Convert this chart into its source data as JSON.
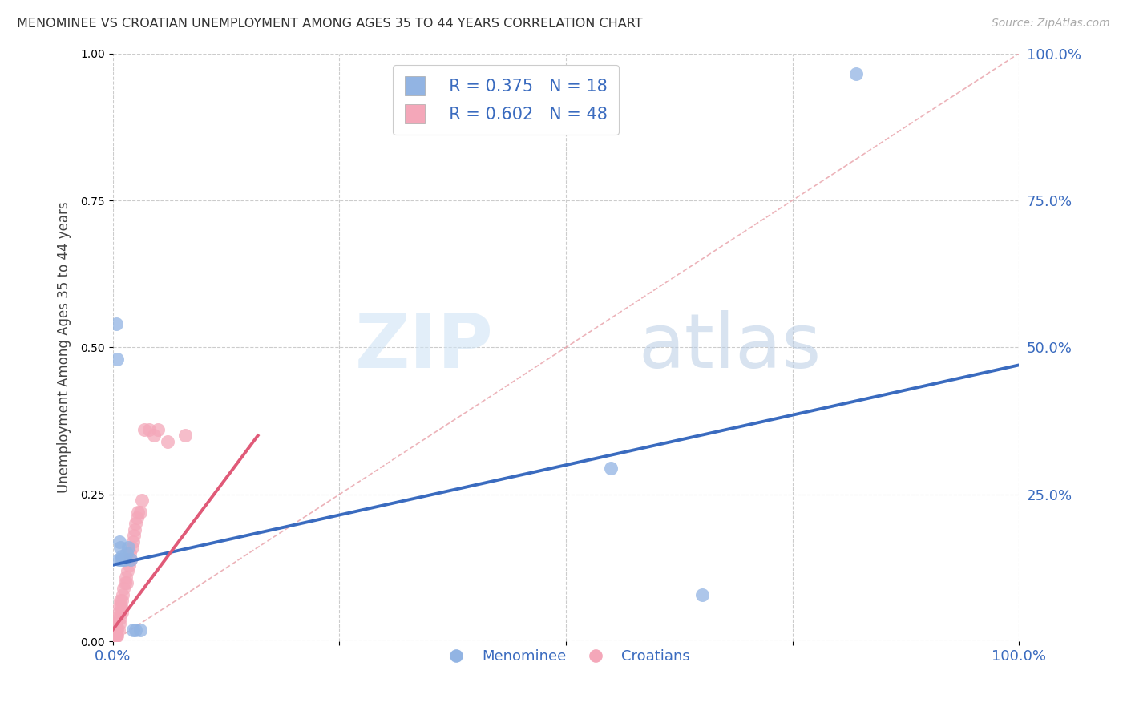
{
  "title": "MENOMINEE VS CROATIAN UNEMPLOYMENT AMONG AGES 35 TO 44 YEARS CORRELATION CHART",
  "source": "Source: ZipAtlas.com",
  "ylabel": "Unemployment Among Ages 35 to 44 years",
  "xlim": [
    0.0,
    1.0
  ],
  "ylim": [
    0.0,
    1.0
  ],
  "xticks": [
    0.0,
    0.25,
    0.5,
    0.75,
    1.0
  ],
  "xticklabels": [
    "0.0%",
    "",
    "",
    "",
    "100.0%"
  ],
  "yticks": [
    0.0,
    0.25,
    0.5,
    0.75,
    1.0
  ],
  "yticklabels_right": [
    "",
    "25.0%",
    "50.0%",
    "75.0%",
    "100.0%"
  ],
  "menominee_color": "#92b4e3",
  "croatian_color": "#f4a7b9",
  "menominee_line_color": "#3a6bbf",
  "croatian_line_color": "#e05a78",
  "diagonal_color": "#e8a0a8",
  "legend_R_menominee": "R = 0.375",
  "legend_N_menominee": "N = 18",
  "legend_R_croatian": "R = 0.602",
  "legend_N_croatian": "N = 48",
  "menominee_x": [
    0.004,
    0.005,
    0.006,
    0.007,
    0.008,
    0.009,
    0.01,
    0.011,
    0.013,
    0.015,
    0.017,
    0.02,
    0.022,
    0.025,
    0.03,
    0.55,
    0.65,
    0.82
  ],
  "menominee_y": [
    0.54,
    0.48,
    0.14,
    0.17,
    0.16,
    0.14,
    0.145,
    0.14,
    0.14,
    0.15,
    0.16,
    0.14,
    0.02,
    0.02,
    0.02,
    0.295,
    0.08,
    0.965
  ],
  "croatian_x": [
    0.001,
    0.001,
    0.002,
    0.002,
    0.002,
    0.003,
    0.003,
    0.003,
    0.004,
    0.004,
    0.004,
    0.005,
    0.005,
    0.005,
    0.006,
    0.006,
    0.007,
    0.007,
    0.008,
    0.008,
    0.009,
    0.01,
    0.01,
    0.011,
    0.012,
    0.013,
    0.014,
    0.015,
    0.016,
    0.017,
    0.018,
    0.019,
    0.02,
    0.021,
    0.022,
    0.023,
    0.024,
    0.025,
    0.027,
    0.028,
    0.03,
    0.032,
    0.035,
    0.04,
    0.045,
    0.05,
    0.06,
    0.08
  ],
  "croatian_y": [
    0.01,
    0.02,
    0.01,
    0.02,
    0.03,
    0.01,
    0.02,
    0.03,
    0.01,
    0.02,
    0.03,
    0.01,
    0.02,
    0.04,
    0.02,
    0.05,
    0.03,
    0.06,
    0.04,
    0.07,
    0.06,
    0.05,
    0.07,
    0.08,
    0.09,
    0.1,
    0.11,
    0.1,
    0.12,
    0.14,
    0.13,
    0.15,
    0.14,
    0.16,
    0.17,
    0.18,
    0.19,
    0.2,
    0.21,
    0.22,
    0.22,
    0.24,
    0.36,
    0.36,
    0.35,
    0.36,
    0.34,
    0.35
  ],
  "menominee_line_x0": 0.0,
  "menominee_line_y0": 0.13,
  "menominee_line_x1": 1.0,
  "menominee_line_y1": 0.47,
  "croatian_line_x0": 0.0,
  "croatian_line_y0": 0.02,
  "croatian_line_x1": 0.16,
  "croatian_line_y1": 0.35,
  "watermark_zip": "ZIP",
  "watermark_atlas": "atlas",
  "background_color": "#ffffff",
  "grid_color": "#cccccc"
}
